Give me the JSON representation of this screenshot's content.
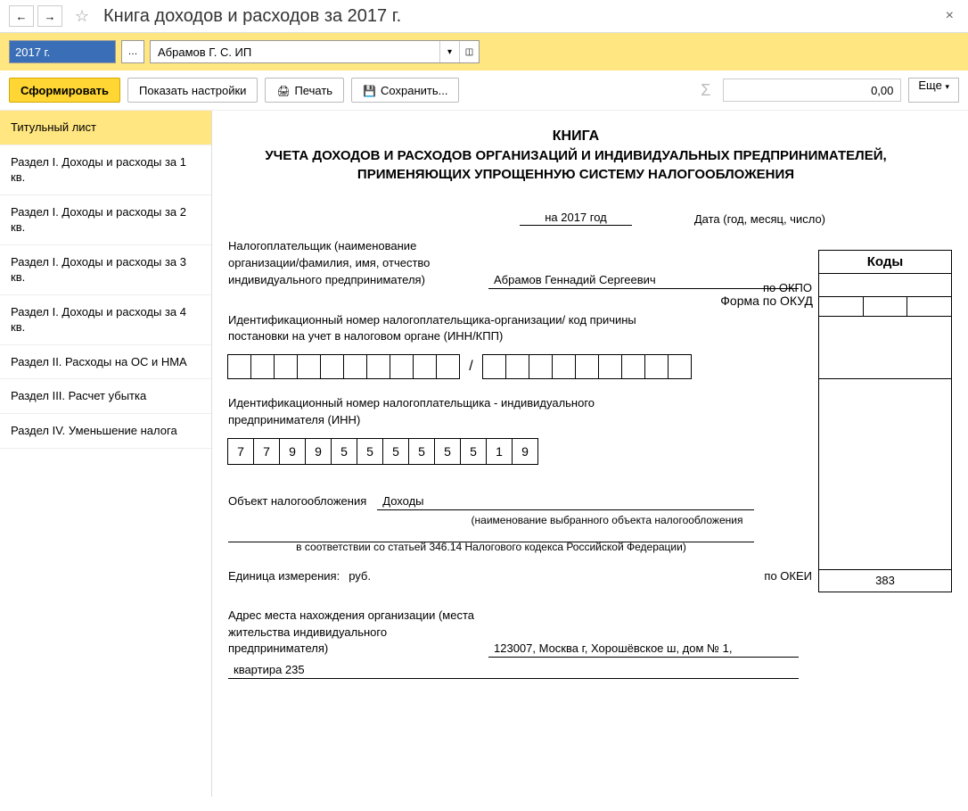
{
  "title": "Книга доходов и расходов за 2017 г.",
  "filters": {
    "year": "2017 г.",
    "org": "Абрамов Г. С. ИП"
  },
  "toolbar": {
    "generate": "Сформировать",
    "show_settings": "Показать настройки",
    "print": "Печать",
    "save": "Сохранить...",
    "sum": "0,00",
    "more": "Еще"
  },
  "sidebar": {
    "items": [
      "Титульный лист",
      "Раздел I. Доходы и расходы за 1 кв.",
      "Раздел I. Доходы и расходы за 2 кв.",
      "Раздел I. Доходы и расходы за 3 кв.",
      "Раздел I. Доходы и расходы за 4 кв.",
      "Раздел II. Расходы на ОС и НМА",
      "Раздел III. Расчет убытка",
      "Раздел IV. Уменьшение налога"
    ],
    "active_index": 0
  },
  "doc": {
    "heading1": "КНИГА",
    "heading2": "УЧЕТА ДОХОДОВ И РАСХОДОВ ОРГАНИЗАЦИЙ И ИНДИВИДУАЛЬНЫХ ПРЕДПРИНИМАТЕЛЕЙ, ПРИМЕНЯЮЩИХ УПРОЩЕННУЮ СИСТЕМУ НАЛОГООБЛОЖЕНИЯ",
    "year_text": "на 2017 год",
    "codes_header": "Коды",
    "form_okud": "Форма по ОКУД",
    "date_label": "Дата (год, месяц, число)",
    "taxpayer_label": "Налогоплательщик (наименование организации/фамилия, имя, отчество индивидуального предпринимателя)",
    "taxpayer_name": "Абрамов Геннадий Сергеевич",
    "okpo_label": "по ОКПО",
    "inn_kpp_label": "Идентификационный номер налогоплательщика-организации/ код причины постановки на учет в налоговом органе (ИНН/КПП)",
    "inn_label": "Идентификационный номер налогоплательщика - индивидуального предпринимателя (ИНН)",
    "inn": [
      "7",
      "7",
      "9",
      "9",
      "5",
      "5",
      "5",
      "5",
      "5",
      "5",
      "1",
      "9"
    ],
    "tax_object_label": "Объект налогообложения",
    "tax_object": "Доходы",
    "tax_object_hint": "(наименование выбранного объекта налогообложения",
    "law_ref": "в соответствии со статьей 346.14 Налогового кодекса Российской Федерации)",
    "unit_label": "Единица измерения:",
    "unit": "руб.",
    "okei_label": "по ОКЕИ",
    "okei": "383",
    "address_label": "Адрес места нахождения организации (места жительства индивидуального предпринимателя)",
    "address_line1": "123007, Москва г, Хорошёвское ш, дом № 1,",
    "address_line2": "квартира 235"
  }
}
